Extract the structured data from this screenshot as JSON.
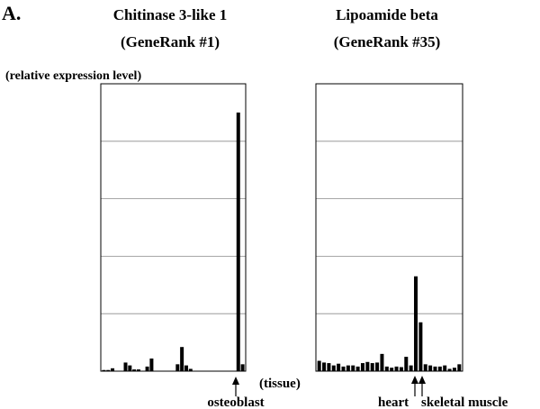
{
  "panel_label": "A.",
  "ylabel": "(relative expression level)",
  "xlabel": "(tissue)",
  "chart_data": [
    {
      "type": "bar",
      "title": "Chitinase 3-like 1",
      "subtitle": "(GeneRank #1)",
      "ylim": [
        0,
        5
      ],
      "grid": "horizontal",
      "values": [
        0.02,
        0.02,
        0.05,
        0,
        0,
        0.15,
        0.1,
        0.03,
        0.03,
        0,
        0.08,
        0.22,
        0,
        0,
        0,
        0,
        0,
        0.12,
        0.42,
        0.1,
        0.04,
        0,
        0,
        0,
        0,
        0,
        0,
        0,
        0,
        0,
        0,
        4.5,
        0.12
      ],
      "annotations": [
        {
          "label": "osteoblast",
          "index": 31
        }
      ]
    },
    {
      "type": "bar",
      "title": "Lipoamide beta",
      "subtitle": "(GeneRank #35)",
      "ylim": [
        0,
        5
      ],
      "grid": "horizontal",
      "values": [
        0.18,
        0.15,
        0.14,
        0.1,
        0.13,
        0.08,
        0.1,
        0.1,
        0.08,
        0.14,
        0.16,
        0.14,
        0.15,
        0.3,
        0.08,
        0.06,
        0.08,
        0.07,
        0.25,
        0.1,
        1.65,
        0.85,
        0.12,
        0.1,
        0.08,
        0.08,
        0.1,
        0.04,
        0.06,
        0.12
      ],
      "annotations": [
        {
          "label": "heart",
          "index": 20
        },
        {
          "label": "skeletal muscle",
          "index": 21
        }
      ]
    }
  ]
}
